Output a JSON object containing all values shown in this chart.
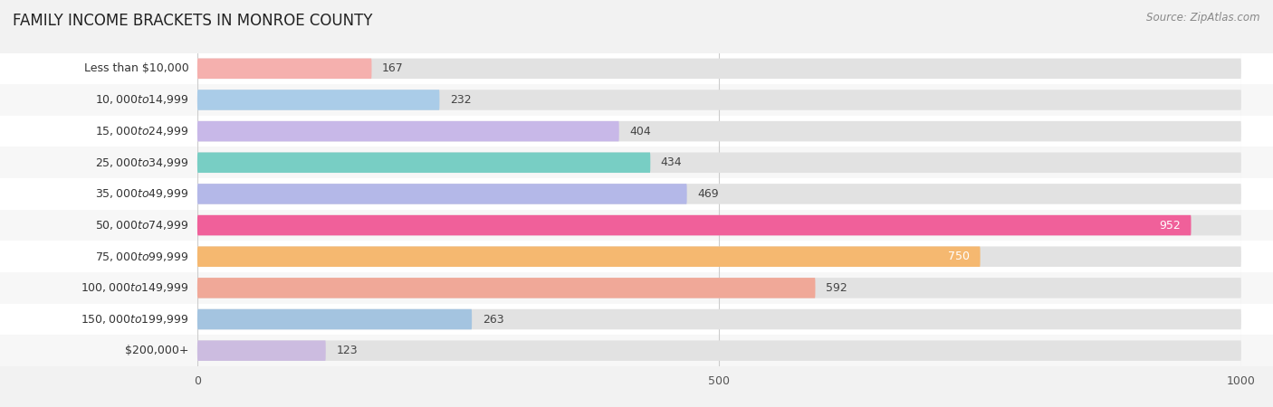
{
  "title": "FAMILY INCOME BRACKETS IN MONROE COUNTY",
  "source": "Source: ZipAtlas.com",
  "categories": [
    "Less than $10,000",
    "$10,000 to $14,999",
    "$15,000 to $24,999",
    "$25,000 to $34,999",
    "$35,000 to $49,999",
    "$50,000 to $74,999",
    "$75,000 to $99,999",
    "$100,000 to $149,999",
    "$150,000 to $199,999",
    "$200,000+"
  ],
  "values": [
    167,
    232,
    404,
    434,
    469,
    952,
    750,
    592,
    263,
    123
  ],
  "bar_colors": [
    "#f5b0ae",
    "#aacce8",
    "#c8b8e8",
    "#78cec4",
    "#b4b8e8",
    "#f0609a",
    "#f5b870",
    "#f0a898",
    "#a4c4e0",
    "#ccbce0"
  ],
  "xlim": [
    0,
    1000
  ],
  "xticks": [
    0,
    500,
    1000
  ],
  "background_color": "#f2f2f2",
  "bar_bg_color": "#e2e2e2",
  "row_bg_colors": [
    "#ffffff",
    "#f7f7f7"
  ],
  "title_fontsize": 12,
  "label_fontsize": 9,
  "value_fontsize": 9,
  "source_fontsize": 8.5,
  "white_value_threshold": 600
}
